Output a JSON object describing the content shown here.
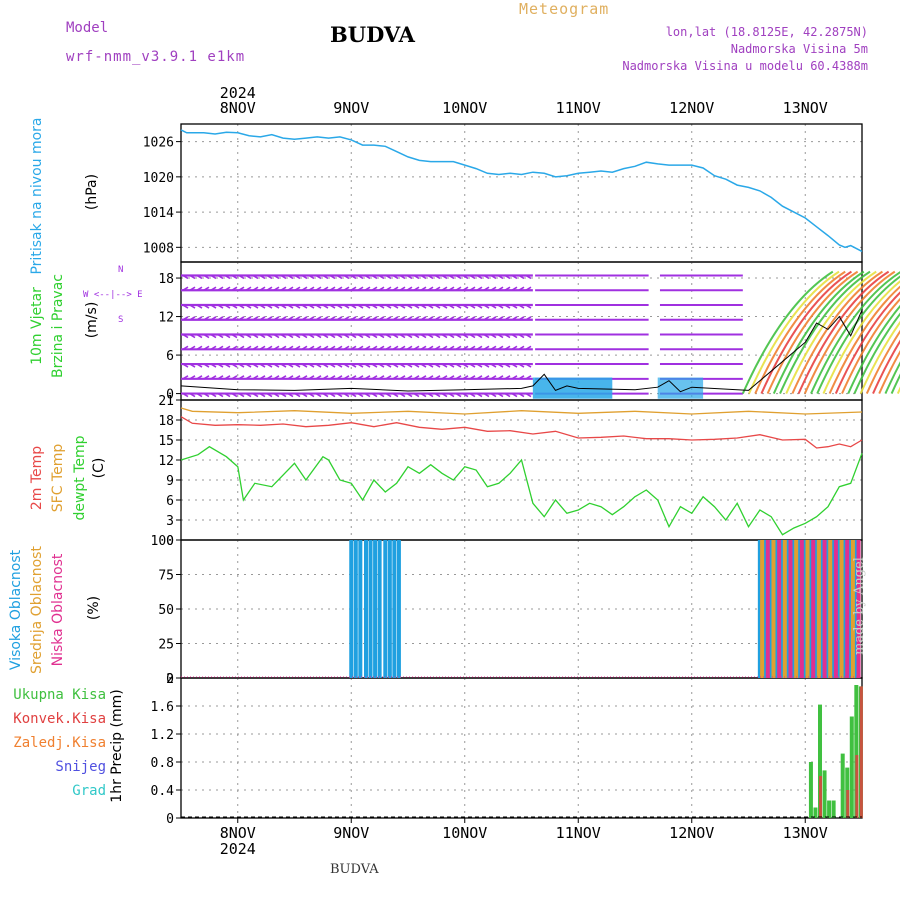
{
  "header": {
    "title": "BUDVA",
    "subtitle": "Meteogram",
    "model_label": "Model",
    "model_name": "wrf-nmm_v3.9.1 e1km",
    "info_lonlat": "lon,lat (18.8125E, 42.2875N)",
    "info_elevation": "Nadmorska Visina 5m",
    "info_model_elevation": "Nadmorska Visina u modelu 60.4388m"
  },
  "footer": {
    "location": "BUDVA",
    "credit": "made by Angel"
  },
  "colors": {
    "pressure": "#2aa8e8",
    "temp2m": "#e84848",
    "sfc_temp": "#e0a030",
    "dewpoint": "#30d030",
    "high_cloud": "#20a0e0",
    "mid_cloud": "#e0a030",
    "low_cloud": "#e03090",
    "total_precip": "#40c040",
    "conv_precip": "#e04040",
    "frz_precip": "#f08030",
    "snow": "#5050e0",
    "graupel": "#30c8c8",
    "wind": "#a030e0"
  },
  "chart_data": [
    {
      "panel": "pressure",
      "type": "line",
      "year": "2024",
      "date_labels": [
        "8NOV",
        "9NOV",
        "10NOV",
        "11NOV",
        "12NOV",
        "13NOV"
      ],
      "xlim": [
        -0.5,
        5.5
      ],
      "y_ticks": [
        "1026",
        "1020",
        "1014",
        "1008"
      ],
      "ylim": [
        1005.5,
        1029
      ],
      "ylabel_side": "Pritisak na nivou mora",
      "ylabel_unit": "(hPa)",
      "series": [
        {
          "name": "Pritisak na nivou mora",
          "x": [
            -0.5,
            -0.45,
            -0.3,
            -0.2,
            -0.1,
            0.0,
            0.1,
            0.2,
            0.3,
            0.4,
            0.5,
            0.6,
            0.7,
            0.8,
            0.9,
            1.0,
            1.1,
            1.2,
            1.3,
            1.4,
            1.5,
            1.6,
            1.7,
            1.8,
            1.9,
            2.0,
            2.1,
            2.2,
            2.3,
            2.4,
            2.5,
            2.6,
            2.7,
            2.8,
            2.9,
            3.0,
            3.1,
            3.2,
            3.3,
            3.4,
            3.5,
            3.6,
            3.7,
            3.8,
            3.9,
            4.0,
            4.1,
            4.2,
            4.3,
            4.4,
            4.5,
            4.6,
            4.7,
            4.8,
            4.9,
            5.0,
            5.1,
            5.2,
            5.3,
            5.35,
            5.4,
            5.5
          ],
          "y": [
            1028,
            1027.5,
            1027.5,
            1027.3,
            1027.6,
            1027.5,
            1027,
            1026.8,
            1027.2,
            1026.6,
            1026.4,
            1026.6,
            1026.8,
            1026.6,
            1026.8,
            1026.3,
            1025.4,
            1025.4,
            1025.2,
            1024.3,
            1023.4,
            1022.8,
            1022.6,
            1022.6,
            1022.6,
            1022,
            1021.4,
            1020.6,
            1020.4,
            1020.6,
            1020.4,
            1020.8,
            1020.6,
            1020,
            1020.2,
            1020.6,
            1020.8,
            1021,
            1020.8,
            1021.4,
            1021.8,
            1022.5,
            1022.2,
            1022,
            1022,
            1022,
            1021.5,
            1020.2,
            1019.6,
            1018.6,
            1018.2,
            1017.6,
            1016.5,
            1015,
            1014,
            1013,
            1011.5,
            1010,
            1008.4,
            1008,
            1008.3,
            1007.3
          ]
        }
      ]
    },
    {
      "panel": "wind",
      "type": "line",
      "ylim": [
        -1,
        20.5
      ],
      "y_ticks": [
        "18",
        "12",
        "6",
        "0"
      ],
      "ylabel_side": [
        "10m Vjetar",
        "Brzina i Pravac"
      ],
      "ylabel_unit": "(m/s)",
      "compass": "W <--|--> E",
      "compass_vertical": [
        "N",
        "S"
      ],
      "series": [
        {
          "name": "10m Vjetar",
          "x": [
            -0.5,
            0,
            0.5,
            1,
            1.5,
            2,
            2.5,
            2.6,
            2.7,
            2.8,
            2.9,
            3,
            3.5,
            3.7,
            3.8,
            3.9,
            4,
            4.5,
            5,
            5.1,
            5.2,
            5.3,
            5.4,
            5.5
          ],
          "y": [
            1.2,
            0.6,
            0.5,
            0.8,
            0.4,
            0.6,
            0.8,
            1.2,
            3,
            0.5,
            1.2,
            0.8,
            0.6,
            1,
            2,
            0.3,
            1,
            0.5,
            8,
            11,
            10,
            12,
            9,
            13
          ]
        }
      ]
    },
    {
      "panel": "temperature",
      "type": "line",
      "ylim": [
        0,
        21
      ],
      "y_ticks": [
        "21",
        "18",
        "15",
        "12",
        "9",
        "6",
        "3",
        "0"
      ],
      "ylabel_side": [
        "2m Temp",
        "SFC Temp",
        "dewpt Temp"
      ],
      "ylabel_unit": "(C)",
      "series": [
        {
          "name": "2m Temp",
          "x": [
            -0.5,
            -0.4,
            -0.2,
            0,
            0.2,
            0.4,
            0.6,
            0.8,
            1,
            1.2,
            1.4,
            1.6,
            1.8,
            2,
            2.2,
            2.4,
            2.6,
            2.8,
            3,
            3.2,
            3.4,
            3.6,
            3.8,
            4,
            4.2,
            4.4,
            4.6,
            4.8,
            5,
            5.1,
            5.2,
            5.3,
            5.4,
            5.5
          ],
          "y": [
            18.5,
            17.5,
            17.2,
            17.3,
            17.2,
            17.4,
            17,
            17.2,
            17.6,
            17,
            17.6,
            16.9,
            16.6,
            16.9,
            16.3,
            16.4,
            15.9,
            16.3,
            15.3,
            15.4,
            15.6,
            15.2,
            15.2,
            15.0,
            15.1,
            15.3,
            15.8,
            15.0,
            15.1,
            13.8,
            14.0,
            14.4,
            14.0,
            15.0
          ]
        },
        {
          "name": "SFC Temp",
          "x": [
            -0.5,
            -0.4,
            0,
            0.5,
            1,
            1.5,
            2,
            2.5,
            3,
            3.5,
            4,
            4.5,
            5,
            5.5
          ],
          "y": [
            19.8,
            19.3,
            19.1,
            19.4,
            19.0,
            19.3,
            18.9,
            19.4,
            19.0,
            19.3,
            18.9,
            19.3,
            18.9,
            19.2
          ]
        },
        {
          "name": "dewpt Temp",
          "x": [
            -0.5,
            -0.35,
            -0.25,
            -0.1,
            0.0,
            0.05,
            0.15,
            0.3,
            0.5,
            0.6,
            0.75,
            0.8,
            0.9,
            1.0,
            1.1,
            1.2,
            1.3,
            1.4,
            1.5,
            1.6,
            1.7,
            1.8,
            1.9,
            2.0,
            2.1,
            2.2,
            2.3,
            2.4,
            2.5,
            2.6,
            2.7,
            2.8,
            2.9,
            3.0,
            3.1,
            3.2,
            3.3,
            3.4,
            3.5,
            3.6,
            3.7,
            3.8,
            3.9,
            4.0,
            4.1,
            4.2,
            4.3,
            4.4,
            4.5,
            4.6,
            4.7,
            4.8,
            4.9,
            5.0,
            5.1,
            5.2,
            5.3,
            5.4,
            5.5
          ],
          "y": [
            12,
            12.8,
            14,
            12.5,
            11,
            6,
            8.5,
            8,
            11.5,
            9,
            12.5,
            12,
            9,
            8.5,
            6,
            9,
            7.2,
            8.5,
            11,
            10,
            11.3,
            10,
            9,
            11,
            10.5,
            8,
            8.5,
            10,
            12,
            5.5,
            3.5,
            6,
            4,
            4.5,
            5.5,
            5,
            3.8,
            5,
            6.5,
            7.5,
            6,
            2,
            5,
            4,
            6.5,
            5,
            3,
            5.5,
            2,
            4.5,
            3.5,
            0.8,
            1.8,
            2.5,
            3.5,
            5,
            8,
            8.5,
            13
          ]
        }
      ]
    },
    {
      "panel": "cloud_cover",
      "type": "bar",
      "ylim": [
        0,
        100
      ],
      "y_ticks": [
        "100",
        "75",
        "50",
        "25",
        "0"
      ],
      "ylabel_side": [
        "Visoka Oblacnost",
        "Srednja Oblacnost",
        "Niska Oblacnost"
      ],
      "ylabel_unit": "(%)",
      "series": [
        {
          "name": "Visoka Oblacnost",
          "x": [
            1.0,
            1.04,
            1.08,
            1.13,
            1.17,
            1.21,
            1.25,
            1.3,
            1.34,
            1.38,
            1.42,
            4.6,
            4.65,
            4.7,
            4.75,
            4.8,
            4.85,
            4.9,
            4.95,
            5.0,
            5.05,
            5.1,
            5.15,
            5.2,
            5.25,
            5.3,
            5.35,
            5.4,
            5.45
          ],
          "y": [
            100,
            100,
            100,
            100,
            100,
            100,
            100,
            100,
            100,
            100,
            100,
            100,
            100,
            100,
            100,
            100,
            100,
            100,
            100,
            100,
            100,
            100,
            100,
            100,
            100,
            100,
            100,
            100,
            100
          ]
        },
        {
          "name": "Srednja Oblacnost",
          "x": [
            4.62,
            4.72,
            4.82,
            4.92,
            5.02,
            5.12,
            5.22,
            5.32,
            5.42
          ],
          "y": [
            100,
            100,
            100,
            100,
            100,
            100,
            100,
            100,
            100
          ]
        },
        {
          "name": "Niska Oblacnost",
          "x": [
            4.67,
            4.77,
            4.87,
            4.97,
            5.07,
            5.17,
            5.27,
            5.37,
            5.47
          ],
          "y": [
            100,
            100,
            100,
            100,
            100,
            100,
            100,
            100,
            100
          ]
        }
      ]
    },
    {
      "panel": "precipitation",
      "type": "bar",
      "ylim": [
        0,
        2
      ],
      "y_ticks": [
        "2",
        "1.6",
        "1.2",
        "0.8",
        "0.4",
        "0"
      ],
      "ylabel_side": "1hr Precip",
      "ylabel_unit": "(mm)",
      "legend": [
        "Ukupna Kisa",
        "Konvek.Kisa",
        "Zaledj.Kisa",
        "Snijeg",
        "Grad"
      ],
      "series": [
        {
          "name": "Ukupna Kisa",
          "x": [
            5.05,
            5.09,
            5.13,
            5.17,
            5.21,
            5.25,
            5.29,
            5.33,
            5.37,
            5.41,
            5.45,
            5.49
          ],
          "y": [
            0.8,
            0.15,
            1.62,
            0.68,
            0.25,
            0.25,
            0.0,
            0.92,
            0.72,
            1.45,
            1.9,
            1.88
          ]
        },
        {
          "name": "Konvek.Kisa",
          "x": [
            5.13,
            5.37,
            5.45,
            5.49
          ],
          "y": [
            0.6,
            0.4,
            0.9,
            1.88
          ]
        }
      ]
    }
  ]
}
